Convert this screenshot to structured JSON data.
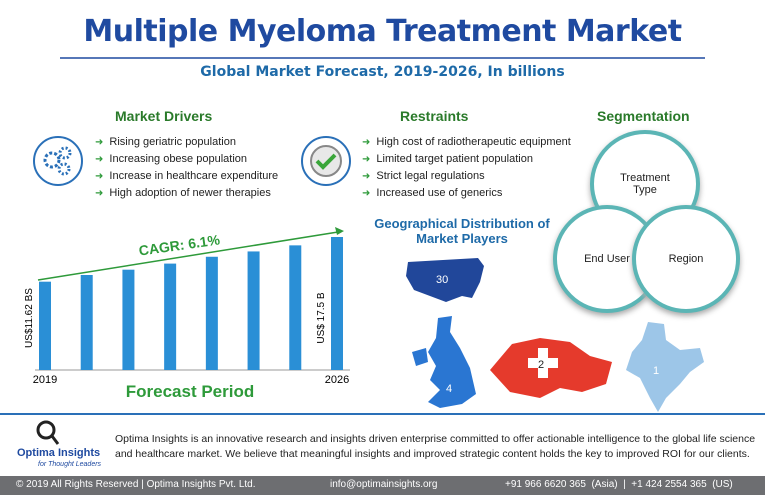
{
  "header": {
    "title": "Multiple Myeloma Treatment Market",
    "subtitle": "Global Market Forecast, 2019-2026, In billions"
  },
  "drivers": {
    "title": "Market Drivers",
    "items": [
      "Rising geriatric population",
      "Increasing obese population",
      "Increase in healthcare expenditure",
      "High adoption of newer therapies"
    ]
  },
  "restraints": {
    "title": "Restraints",
    "items": [
      "High cost of radiotherapeutic equipment",
      "Limited target patient population",
      "Strict legal regulations",
      "Increased use of generics"
    ]
  },
  "segmentation": {
    "title": "Segmentation",
    "segments": [
      "Treatment Type",
      "End User",
      "Region"
    ]
  },
  "geography": {
    "title": "Geographical Distribution of Market Players",
    "counts": [
      30,
      4,
      2,
      1
    ]
  },
  "forecast": {
    "cagr": "CAGR: 6.1%",
    "categories": [
      "2019",
      null,
      null,
      null,
      null,
      null,
      null,
      "2026"
    ],
    "values": [
      11.62,
      12.5,
      13.2,
      14.0,
      14.9,
      15.6,
      16.4,
      17.5
    ],
    "value_labels": [
      "US$11.62 BS",
      null,
      null,
      null,
      null,
      null,
      null,
      "US$ 17.5 B"
    ],
    "ylim": [
      0,
      17.5
    ],
    "color": "#2a8fd6",
    "xlabel": "Forecast Period"
  },
  "footer": {
    "logo": "Optima Insights",
    "tagline": "for Thought Leaders",
    "description": "Optima Insights is an innovative research and insights driven enterprise committed to offer actionable intelligence to the global life science and healthcare market. We believe that meaningful insights and improved strategic content holds the key to improved ROI for our clients.",
    "copyright": "© 2019 All Rights Reserved | Optima Insights Pvt. Ltd.",
    "email": "info@optimainsights.org",
    "phone": "+91 966 6620 365  (Asia)  |  +1 424 2554 365  (US)"
  }
}
